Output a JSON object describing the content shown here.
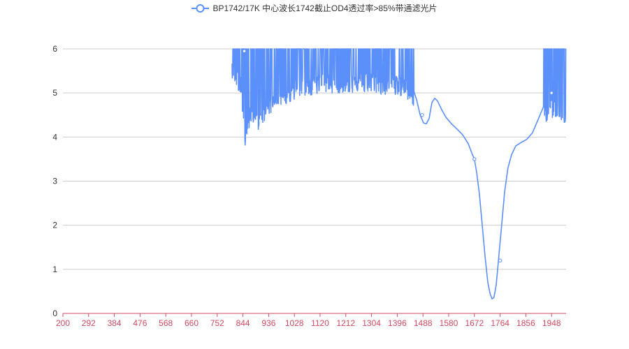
{
  "chart_data": {
    "type": "line",
    "title": "",
    "xlabel": "",
    "ylabel": "",
    "xlim": [
      200,
      2000
    ],
    "ylim": [
      0,
      6
    ],
    "x_ticks": [
      "200",
      "292",
      "384",
      "476",
      "568",
      "660",
      "752",
      "844",
      "936",
      "1028",
      "1120",
      "1212",
      "1304",
      "1396",
      "1488",
      "1580",
      "1672",
      "1764",
      "1856",
      "1948"
    ],
    "y_ticks": [
      "0",
      "1",
      "2",
      "3",
      "4",
      "5",
      "6"
    ],
    "grid": "horizontal",
    "legend_position": "top-center",
    "colors": {
      "series": "#5b8ff9",
      "x_axis_line": "#d14a61",
      "x_tick_label": "#d14a61",
      "grid": "#cccccc",
      "y_label": "#333333"
    },
    "series": [
      {
        "name": "BP1742/17K 中心波长1742截止OD4透过率>85%带通滤光片",
        "noisy_region_ranges": [
          [
            805,
            1455
          ],
          [
            1920,
            2000
          ]
        ],
        "points": [
          [
            805,
            5.8
          ],
          [
            835,
            5.4
          ],
          [
            844,
            4.6
          ],
          [
            850,
            4.1
          ],
          [
            860,
            4.6
          ],
          [
            880,
            4.8
          ],
          [
            900,
            4.6
          ],
          [
            930,
            4.9
          ],
          [
            960,
            5.1
          ],
          [
            1000,
            5.2
          ],
          [
            1040,
            5.35
          ],
          [
            1100,
            5.4
          ],
          [
            1150,
            5.45
          ],
          [
            1200,
            5.45
          ],
          [
            1250,
            5.45
          ],
          [
            1300,
            5.45
          ],
          [
            1350,
            5.4
          ],
          [
            1400,
            5.4
          ],
          [
            1430,
            5.3
          ],
          [
            1450,
            5.15
          ],
          [
            1465,
            4.85
          ],
          [
            1478,
            4.5
          ],
          [
            1490,
            4.32
          ],
          [
            1500,
            4.3
          ],
          [
            1510,
            4.42
          ],
          [
            1520,
            4.78
          ],
          [
            1530,
            4.88
          ],
          [
            1540,
            4.82
          ],
          [
            1555,
            4.62
          ],
          [
            1570,
            4.45
          ],
          [
            1590,
            4.3
          ],
          [
            1610,
            4.18
          ],
          [
            1630,
            4.05
          ],
          [
            1650,
            3.85
          ],
          [
            1665,
            3.6
          ],
          [
            1672,
            3.5
          ],
          [
            1680,
            3.2
          ],
          [
            1690,
            2.7
          ],
          [
            1700,
            2.0
          ],
          [
            1710,
            1.3
          ],
          [
            1720,
            0.7
          ],
          [
            1728,
            0.45
          ],
          [
            1735,
            0.33
          ],
          [
            1742,
            0.36
          ],
          [
            1750,
            0.65
          ],
          [
            1758,
            1.2
          ],
          [
            1768,
            1.9
          ],
          [
            1780,
            2.75
          ],
          [
            1792,
            3.3
          ],
          [
            1805,
            3.6
          ],
          [
            1820,
            3.8
          ],
          [
            1840,
            3.88
          ],
          [
            1860,
            3.95
          ],
          [
            1880,
            4.1
          ],
          [
            1900,
            4.4
          ],
          [
            1920,
            4.7
          ],
          [
            1940,
            4.85
          ],
          [
            1960,
            4.9
          ],
          [
            1980,
            4.85
          ],
          [
            2000,
            4.7
          ]
        ],
        "markers": [
          [
            1485,
            4.5
          ],
          [
            1672,
            3.5
          ],
          [
            1764,
            1.2
          ],
          [
            1948,
            5.0
          ],
          [
            849,
            5.95
          ]
        ]
      }
    ]
  }
}
